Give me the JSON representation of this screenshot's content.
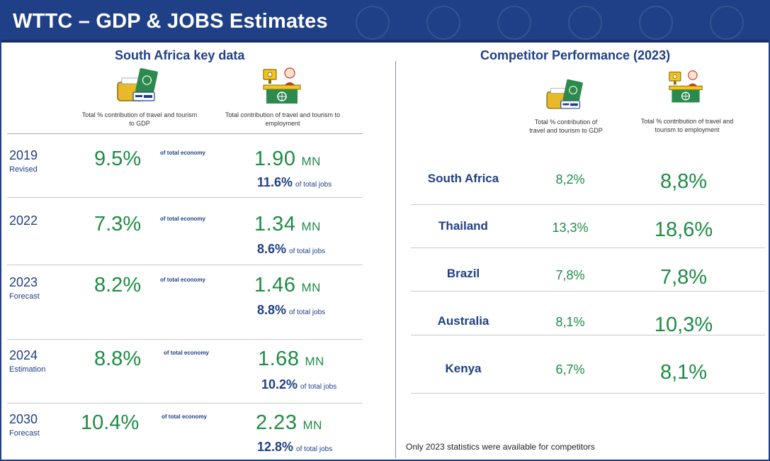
{
  "header": {
    "title": "WTTC – GDP & JOBS Estimates"
  },
  "left": {
    "title": "South Africa key data",
    "caption_gdp": "Total % contribution of travel and tourism to GDP",
    "caption_jobs": "Total contribution of travel and tourism to employment",
    "rows": [
      {
        "year": "2019",
        "sub": "Revised",
        "gdp": "9.5%",
        "toe": "of total economy",
        "mn": "1.90",
        "unit": "MN",
        "jobs_pct": "11.6%",
        "jobs_label": "of total jobs"
      },
      {
        "year": "2022",
        "sub": "",
        "gdp": "7.3%",
        "toe": "of total economy",
        "mn": "1.34",
        "unit": "MN",
        "jobs_pct": "8.6%",
        "jobs_label": "of total jobs"
      },
      {
        "year": "2023",
        "sub": "Forecast",
        "gdp": "8.2%",
        "toe": "of total economy",
        "mn": "1.46",
        "unit": "MN",
        "jobs_pct": "8.8%",
        "jobs_label": "of total jobs"
      },
      {
        "year": "2024",
        "sub": "Estimation",
        "gdp": "8.8%",
        "toe": "of total economy",
        "mn": "1.68",
        "unit": "MN",
        "jobs_pct": "10.2%",
        "jobs_label": "of total jobs"
      },
      {
        "year": "2030",
        "sub": "Forecast",
        "gdp": "10.4%",
        "toe": "of total economy",
        "mn": "2.23",
        "unit": "MN",
        "jobs_pct": "12.8%",
        "jobs_label": "of total jobs"
      }
    ]
  },
  "right": {
    "title": "Competitor Performance (2023)",
    "caption_gdp": "Total % contribution of travel and tourism to GDP",
    "caption_jobs": "Total % contribution of travel and tourism to employment",
    "rows": [
      {
        "country": "South Africa",
        "gdp": "8,2%",
        "jobs": "8,8%"
      },
      {
        "country": "Thailand",
        "gdp": "13,3%",
        "jobs": "18,6%"
      },
      {
        "country": "Brazil",
        "gdp": "7,8%",
        "jobs": "7,8%"
      },
      {
        "country": "Australia",
        "gdp": "8,1%",
        "jobs": "10,3%"
      },
      {
        "country": "Kenya",
        "gdp": "6,7%",
        "jobs": "8,1%"
      }
    ],
    "footnote": "Only 2023 statistics were available for competitors"
  },
  "icons": [
    "wallet-passport-icon",
    "employee-desk-icon"
  ],
  "colors": {
    "header": "#1f3f86",
    "navy_text": "#1f3f86",
    "green_value": "#1e8c44"
  }
}
